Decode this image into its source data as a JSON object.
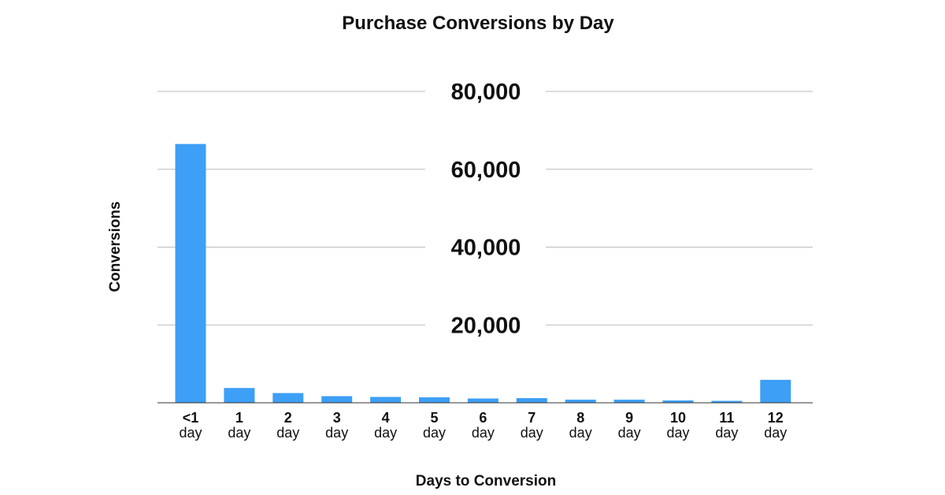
{
  "chart_data": {
    "type": "bar",
    "title": "Purchase Conversions by Day",
    "xlabel": "Days to Conversion",
    "ylabel": "Conversions",
    "categories": [
      {
        "num": "<1",
        "unit": "day"
      },
      {
        "num": "1",
        "unit": "day"
      },
      {
        "num": "2",
        "unit": "day"
      },
      {
        "num": "3",
        "unit": "day"
      },
      {
        "num": "4",
        "unit": "day"
      },
      {
        "num": "5",
        "unit": "day"
      },
      {
        "num": "6",
        "unit": "day"
      },
      {
        "num": "7",
        "unit": "day"
      },
      {
        "num": "8",
        "unit": "day"
      },
      {
        "num": "9",
        "unit": "day"
      },
      {
        "num": "10",
        "unit": "day"
      },
      {
        "num": "11",
        "unit": "day"
      },
      {
        "num": "12",
        "unit": "day"
      }
    ],
    "values": [
      66500,
      3800,
      2500,
      1700,
      1500,
      1400,
      1100,
      1200,
      800,
      800,
      600,
      500,
      5900
    ],
    "yticks": [
      {
        "value": 20000,
        "label": "20,000"
      },
      {
        "value": 40000,
        "label": "40,000"
      },
      {
        "value": 60000,
        "label": "60,000"
      },
      {
        "value": 80000,
        "label": "80,000"
      }
    ],
    "ylim": [
      0,
      80000
    ],
    "grid": true,
    "legend": "none",
    "colors": {
      "bar": "#3d9ff6",
      "grid": "#bdbdbd",
      "axis": "#333333"
    }
  }
}
